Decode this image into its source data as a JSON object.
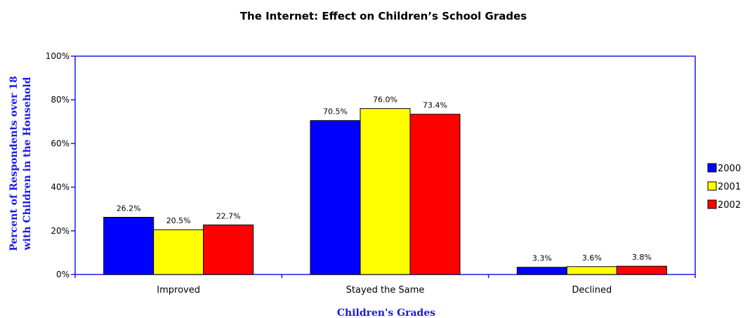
{
  "chart_data": {
    "type": "bar",
    "title": "The Internet: Effect on Children’s School Grades",
    "xlabel": "Children's Grades",
    "ylabel_lines": [
      "Percent of Respondents over 18",
      "with Children in the Household"
    ],
    "categories": [
      "Improved",
      "Stayed the Same",
      "Declined"
    ],
    "series": [
      {
        "name": "2000",
        "color": "#0000ff",
        "values": [
          26.2,
          70.5,
          3.3
        ],
        "labels": [
          "26.2%",
          "70.5%",
          "3.3%"
        ]
      },
      {
        "name": "2001",
        "color": "#ffff00",
        "values": [
          20.5,
          76.0,
          3.6
        ],
        "labels": [
          "20.5%",
          "76.0%",
          "3.6%"
        ]
      },
      {
        "name": "2002",
        "color": "#ff0000",
        "values": [
          22.7,
          73.4,
          3.8
        ],
        "labels": [
          "22.7%",
          "73.4%",
          "3.8%"
        ]
      }
    ],
    "ylim": [
      0,
      100
    ],
    "yticks": [
      0,
      20,
      40,
      60,
      80,
      100
    ],
    "ytick_labels": [
      "0%",
      "20%",
      "40%",
      "60%",
      "80%",
      "100%"
    ],
    "grid": false,
    "legend_position": "right",
    "axis_color": "#1a1ae6",
    "axis_title_color": "#1a1ae6"
  }
}
